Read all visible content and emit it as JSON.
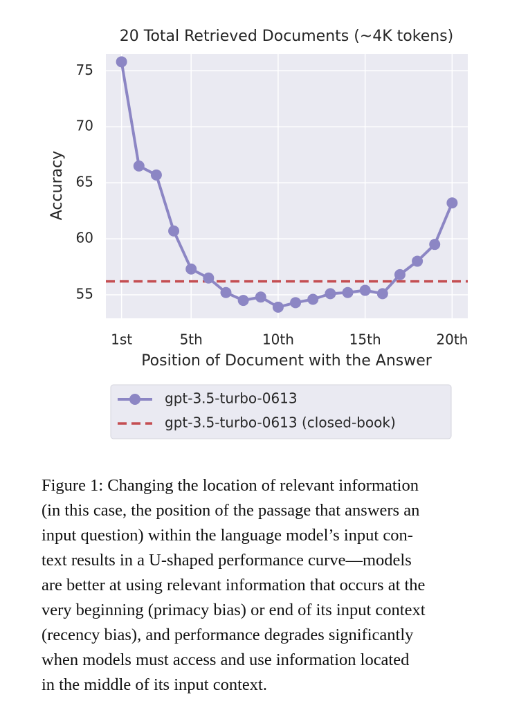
{
  "chart_data": {
    "type": "line",
    "title": "20 Total Retrieved Documents (~4K tokens)",
    "xlabel": "Position of Document with the Answer",
    "ylabel": "Accuracy",
    "x": [
      1,
      2,
      3,
      4,
      5,
      6,
      7,
      8,
      9,
      10,
      11,
      12,
      13,
      14,
      15,
      16,
      17,
      18,
      19,
      20
    ],
    "series": [
      {
        "name": "gpt-3.5-turbo-0613",
        "color": "#8c86c4",
        "values": [
          75.8,
          66.5,
          65.7,
          60.7,
          57.3,
          56.5,
          55.2,
          54.5,
          54.8,
          53.9,
          54.3,
          54.6,
          55.1,
          55.2,
          55.4,
          55.1,
          56.8,
          58.0,
          59.5,
          63.2
        ]
      }
    ],
    "hlines": [
      {
        "name": "gpt-3.5-turbo-0613 (closed-book)",
        "y": 56.2,
        "color": "#c44e52",
        "dashed": true
      }
    ],
    "xlim": [
      0.1,
      20.9
    ],
    "ylim": [
      52.9,
      76.5
    ],
    "xticks": [
      {
        "value": 1,
        "label": "1st"
      },
      {
        "value": 5,
        "label": "5th"
      },
      {
        "value": 10,
        "label": "10th"
      },
      {
        "value": 15,
        "label": "15th"
      },
      {
        "value": 20,
        "label": "20th"
      }
    ],
    "yticks": [
      55,
      60,
      65,
      70,
      75
    ],
    "grid": true,
    "legend": "below"
  },
  "caption": {
    "lines": [
      "Figure 1: Changing the location of relevant information",
      "(in this case, the position of the passage that answers an",
      "input question) within the language model’s input con-",
      "text results in a U-shaped performance curve—models",
      "are better at using relevant information that occurs at the",
      "very beginning (primacy bias) or end of its input context",
      "(recency bias), and performance degrades significantly",
      "when models must access and use information located",
      "in the middle of its input context."
    ]
  }
}
